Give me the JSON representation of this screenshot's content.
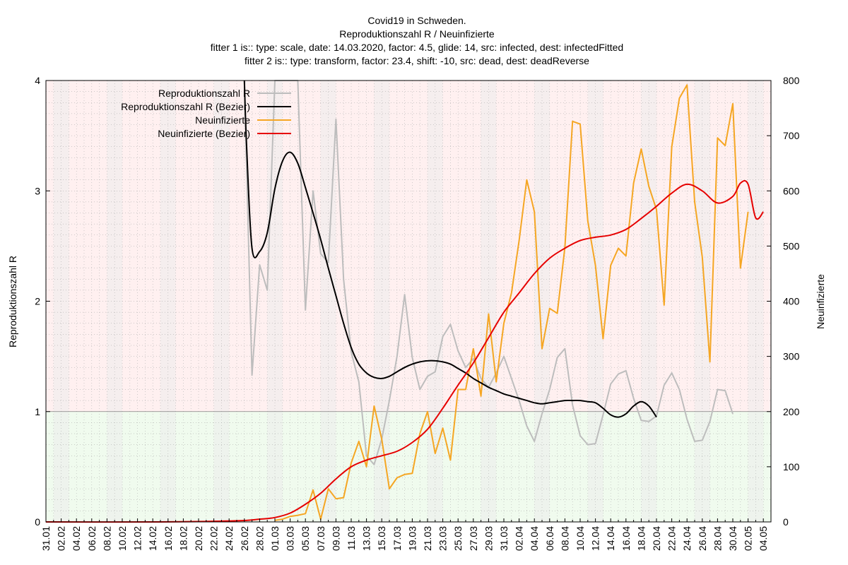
{
  "chart_data": {
    "type": "line",
    "title": "Covid19 in Schweden.",
    "subtitle": "Reproduktionszahl R / Neuinfizierte",
    "subtitle_lines": [
      "fitter 1 is:: type: scale, date: 14.03.2020, factor: 4.5, glide: 14, src: infected, dest: infectedFitted",
      "fitter 2 is:: type: transform, factor: 23.4, shift: -10, src: dead, dest: deadReverse"
    ],
    "ylabel": "Reproduktionszahl R",
    "y2label": "Neuinfizierte",
    "xlim": [
      "2020-01-31",
      "2020-05-05"
    ],
    "ylim": [
      0,
      4
    ],
    "y2lim": [
      0,
      800
    ],
    "yticks": [
      0,
      1,
      2,
      3,
      4
    ],
    "y2ticks": [
      0,
      100,
      200,
      300,
      400,
      500,
      600,
      700,
      800
    ],
    "x_tick_labels": [
      "31.01",
      "02.02",
      "04.02",
      "06.02",
      "08.02",
      "10.02",
      "12.02",
      "14.02",
      "16.02",
      "18.02",
      "20.02",
      "22.02",
      "24.02",
      "26.02",
      "28.02",
      "01.03",
      "03.03",
      "05.03",
      "07.03",
      "09.03",
      "11.03",
      "13.03",
      "15.03",
      "17.03",
      "19.03",
      "21.03",
      "23.03",
      "25.03",
      "27.03",
      "29.03",
      "31.03",
      "02.04",
      "04.04",
      "06.04",
      "08.04",
      "10.04",
      "12.04",
      "14.04",
      "16.04",
      "18.04",
      "20.04",
      "22.04",
      "24.04",
      "26.04",
      "28.04",
      "30.04",
      "02.05",
      "04.05"
    ],
    "threshold_R": 1,
    "background_above_color": "#fff0f0",
    "background_below_color": "#f0fbee",
    "weekend_shade_color": "#ececec",
    "grid": true,
    "legend_position": "top-left",
    "series": [
      {
        "name": "Reproduktionszahl R",
        "axis": "y",
        "color": "#bdbdbd",
        "points": [
          [
            "2020-02-26",
            4.0
          ],
          [
            "2020-02-27",
            1.33
          ],
          [
            "2020-02-28",
            2.33
          ],
          [
            "2020-02-29",
            2.1
          ],
          [
            "2020-03-01",
            4.0
          ],
          [
            "2020-03-04",
            4.0
          ],
          [
            "2020-03-05",
            1.92
          ],
          [
            "2020-03-06",
            3.0
          ],
          [
            "2020-03-07",
            2.43
          ],
          [
            "2020-03-08",
            2.35
          ],
          [
            "2020-03-09",
            3.65
          ],
          [
            "2020-03-10",
            2.2
          ],
          [
            "2020-03-11",
            1.54
          ],
          [
            "2020-03-12",
            1.27
          ],
          [
            "2020-03-13",
            0.6
          ],
          [
            "2020-03-14",
            0.52
          ],
          [
            "2020-03-15",
            0.75
          ],
          [
            "2020-03-16",
            1.1
          ],
          [
            "2020-03-17",
            1.5
          ],
          [
            "2020-03-18",
            2.06
          ],
          [
            "2020-03-19",
            1.49
          ],
          [
            "2020-03-20",
            1.2
          ],
          [
            "2020-03-21",
            1.32
          ],
          [
            "2020-03-22",
            1.36
          ],
          [
            "2020-03-23",
            1.68
          ],
          [
            "2020-03-24",
            1.79
          ],
          [
            "2020-03-25",
            1.55
          ],
          [
            "2020-03-26",
            1.4
          ],
          [
            "2020-03-27",
            1.48
          ],
          [
            "2020-03-28",
            1.3
          ],
          [
            "2020-03-29",
            1.22
          ],
          [
            "2020-03-30",
            1.35
          ],
          [
            "2020-03-31",
            1.5
          ],
          [
            "2020-04-01",
            1.3
          ],
          [
            "2020-04-02",
            1.1
          ],
          [
            "2020-04-03",
            0.87
          ],
          [
            "2020-04-04",
            0.73
          ],
          [
            "2020-04-05",
            0.98
          ],
          [
            "2020-04-06",
            1.2
          ],
          [
            "2020-04-07",
            1.49
          ],
          [
            "2020-04-08",
            1.57
          ],
          [
            "2020-04-09",
            1.06
          ],
          [
            "2020-04-10",
            0.78
          ],
          [
            "2020-04-11",
            0.7
          ],
          [
            "2020-04-12",
            0.71
          ],
          [
            "2020-04-13",
            0.97
          ],
          [
            "2020-04-14",
            1.25
          ],
          [
            "2020-04-15",
            1.34
          ],
          [
            "2020-04-16",
            1.37
          ],
          [
            "2020-04-17",
            1.12
          ],
          [
            "2020-04-18",
            0.92
          ],
          [
            "2020-04-19",
            0.91
          ],
          [
            "2020-04-20",
            0.96
          ],
          [
            "2020-04-21",
            1.24
          ],
          [
            "2020-04-22",
            1.35
          ],
          [
            "2020-04-23",
            1.2
          ],
          [
            "2020-04-24",
            0.93
          ],
          [
            "2020-04-25",
            0.73
          ],
          [
            "2020-04-26",
            0.74
          ],
          [
            "2020-04-27",
            0.91
          ],
          [
            "2020-04-28",
            1.2
          ],
          [
            "2020-04-29",
            1.19
          ],
          [
            "2020-04-30",
            0.98
          ]
        ]
      },
      {
        "name": "Reproduktionszahl R (Bezier)",
        "axis": "y",
        "color": "#000000",
        "points": [
          [
            "2020-02-26",
            4.0
          ],
          [
            "2020-02-26.3",
            3.4
          ],
          [
            "2020-02-27",
            2.48
          ],
          [
            "2020-02-28",
            2.45
          ],
          [
            "2020-02-29",
            2.62
          ],
          [
            "2020-03-01",
            3.02
          ],
          [
            "2020-03-02",
            3.27
          ],
          [
            "2020-03-03",
            3.35
          ],
          [
            "2020-03-04",
            3.25
          ],
          [
            "2020-03-05",
            3.03
          ],
          [
            "2020-03-06",
            2.8
          ],
          [
            "2020-03-07",
            2.56
          ],
          [
            "2020-03-08",
            2.3
          ],
          [
            "2020-03-09",
            2.05
          ],
          [
            "2020-03-10",
            1.8
          ],
          [
            "2020-03-11",
            1.58
          ],
          [
            "2020-03-12",
            1.43
          ],
          [
            "2020-03-13",
            1.35
          ],
          [
            "2020-03-14",
            1.31
          ],
          [
            "2020-03-15",
            1.3
          ],
          [
            "2020-03-16",
            1.32
          ],
          [
            "2020-03-17",
            1.36
          ],
          [
            "2020-03-18",
            1.4
          ],
          [
            "2020-03-19",
            1.43
          ],
          [
            "2020-03-20",
            1.45
          ],
          [
            "2020-03-21",
            1.46
          ],
          [
            "2020-03-22",
            1.46
          ],
          [
            "2020-03-23",
            1.45
          ],
          [
            "2020-03-24",
            1.43
          ],
          [
            "2020-03-25",
            1.39
          ],
          [
            "2020-03-26",
            1.35
          ],
          [
            "2020-03-27",
            1.3
          ],
          [
            "2020-03-28",
            1.26
          ],
          [
            "2020-03-29",
            1.22
          ],
          [
            "2020-03-30",
            1.19
          ],
          [
            "2020-03-31",
            1.16
          ],
          [
            "2020-04-01",
            1.14
          ],
          [
            "2020-04-02",
            1.12
          ],
          [
            "2020-04-03",
            1.1
          ],
          [
            "2020-04-04",
            1.08
          ],
          [
            "2020-04-05",
            1.07
          ],
          [
            "2020-04-06",
            1.08
          ],
          [
            "2020-04-07",
            1.09
          ],
          [
            "2020-04-08",
            1.1
          ],
          [
            "2020-04-09",
            1.1
          ],
          [
            "2020-04-10",
            1.1
          ],
          [
            "2020-04-11",
            1.09
          ],
          [
            "2020-04-12",
            1.08
          ],
          [
            "2020-04-13",
            1.03
          ],
          [
            "2020-04-14",
            0.97
          ],
          [
            "2020-04-15",
            0.95
          ],
          [
            "2020-04-16",
            0.98
          ],
          [
            "2020-04-17",
            1.05
          ],
          [
            "2020-04-18",
            1.09
          ],
          [
            "2020-04-19",
            1.05
          ],
          [
            "2020-04-20",
            0.95
          ]
        ]
      },
      {
        "name": "Neuinfizierte",
        "axis": "y2",
        "color": "#f5a623",
        "points": [
          [
            "2020-03-01",
            3
          ],
          [
            "2020-03-02",
            5
          ],
          [
            "2020-03-03",
            10
          ],
          [
            "2020-03-04",
            12
          ],
          [
            "2020-03-05",
            15
          ],
          [
            "2020-03-06",
            58
          ],
          [
            "2020-03-07",
            5
          ],
          [
            "2020-03-08",
            60
          ],
          [
            "2020-03-09",
            42
          ],
          [
            "2020-03-10",
            44
          ],
          [
            "2020-03-11",
            107
          ],
          [
            "2020-03-12",
            146
          ],
          [
            "2020-03-13",
            100
          ],
          [
            "2020-03-14",
            210
          ],
          [
            "2020-03-15",
            150
          ],
          [
            "2020-03-16",
            60
          ],
          [
            "2020-03-17",
            80
          ],
          [
            "2020-03-18",
            86
          ],
          [
            "2020-03-19",
            88
          ],
          [
            "2020-03-20",
            160
          ],
          [
            "2020-03-21",
            200
          ],
          [
            "2020-03-22",
            124
          ],
          [
            "2020-03-23",
            170
          ],
          [
            "2020-03-24",
            112
          ],
          [
            "2020-03-25",
            240
          ],
          [
            "2020-03-26",
            240
          ],
          [
            "2020-03-27",
            314
          ],
          [
            "2020-03-28",
            228
          ],
          [
            "2020-03-29",
            377
          ],
          [
            "2020-03-30",
            254
          ],
          [
            "2020-03-31",
            360
          ],
          [
            "2020-04-01",
            415
          ],
          [
            "2020-04-02",
            510
          ],
          [
            "2020-04-03",
            620
          ],
          [
            "2020-04-04",
            562
          ],
          [
            "2020-04-05",
            314
          ],
          [
            "2020-04-06",
            387
          ],
          [
            "2020-04-07",
            378
          ],
          [
            "2020-04-08",
            498
          ],
          [
            "2020-04-09",
            726
          ],
          [
            "2020-04-10",
            721
          ],
          [
            "2020-04-11",
            545
          ],
          [
            "2020-04-12",
            465
          ],
          [
            "2020-04-13",
            332
          ],
          [
            "2020-04-14",
            465
          ],
          [
            "2020-04-15",
            496
          ],
          [
            "2020-04-16",
            482
          ],
          [
            "2020-04-17",
            614
          ],
          [
            "2020-04-18",
            676
          ],
          [
            "2020-04-19",
            608
          ],
          [
            "2020-04-20",
            566
          ],
          [
            "2020-04-21",
            393
          ],
          [
            "2020-04-22",
            680
          ],
          [
            "2020-04-23",
            768
          ],
          [
            "2020-04-24",
            792
          ],
          [
            "2020-04-25",
            580
          ],
          [
            "2020-04-26",
            480
          ],
          [
            "2020-04-27",
            290
          ],
          [
            "2020-04-28",
            696
          ],
          [
            "2020-04-29",
            682
          ],
          [
            "2020-04-30",
            758
          ],
          [
            "2020-05-01",
            460
          ],
          [
            "2020-05-02",
            562
          ]
        ]
      },
      {
        "name": "Neuinfizierte (Bezier)",
        "axis": "y2",
        "color": "#e60000",
        "points": [
          [
            "2020-01-31",
            0
          ],
          [
            "2020-02-15",
            0
          ],
          [
            "2020-02-25",
            2
          ],
          [
            "2020-02-28",
            5
          ],
          [
            "2020-03-01",
            8
          ],
          [
            "2020-03-03",
            16
          ],
          [
            "2020-03-05",
            32
          ],
          [
            "2020-03-07",
            52
          ],
          [
            "2020-03-09",
            78
          ],
          [
            "2020-03-11",
            100
          ],
          [
            "2020-03-13",
            112
          ],
          [
            "2020-03-15",
            120
          ],
          [
            "2020-03-17",
            128
          ],
          [
            "2020-03-19",
            144
          ],
          [
            "2020-03-21",
            168
          ],
          [
            "2020-03-23",
            206
          ],
          [
            "2020-03-25",
            248
          ],
          [
            "2020-03-27",
            288
          ],
          [
            "2020-03-29",
            334
          ],
          [
            "2020-03-31",
            380
          ],
          [
            "2020-04-02",
            415
          ],
          [
            "2020-04-04",
            450
          ],
          [
            "2020-04-06",
            478
          ],
          [
            "2020-04-08",
            496
          ],
          [
            "2020-04-10",
            510
          ],
          [
            "2020-04-12",
            516
          ],
          [
            "2020-04-14",
            520
          ],
          [
            "2020-04-16",
            530
          ],
          [
            "2020-04-18",
            550
          ],
          [
            "2020-04-20",
            572
          ],
          [
            "2020-04-22",
            596
          ],
          [
            "2020-04-24",
            612
          ],
          [
            "2020-04-26",
            600
          ],
          [
            "2020-04-28",
            578
          ],
          [
            "2020-04-30",
            590
          ],
          [
            "2020-05-01",
            614
          ],
          [
            "2020-05-02",
            612
          ],
          [
            "2020-05-03",
            551
          ],
          [
            "2020-05-04",
            562
          ]
        ]
      }
    ]
  }
}
